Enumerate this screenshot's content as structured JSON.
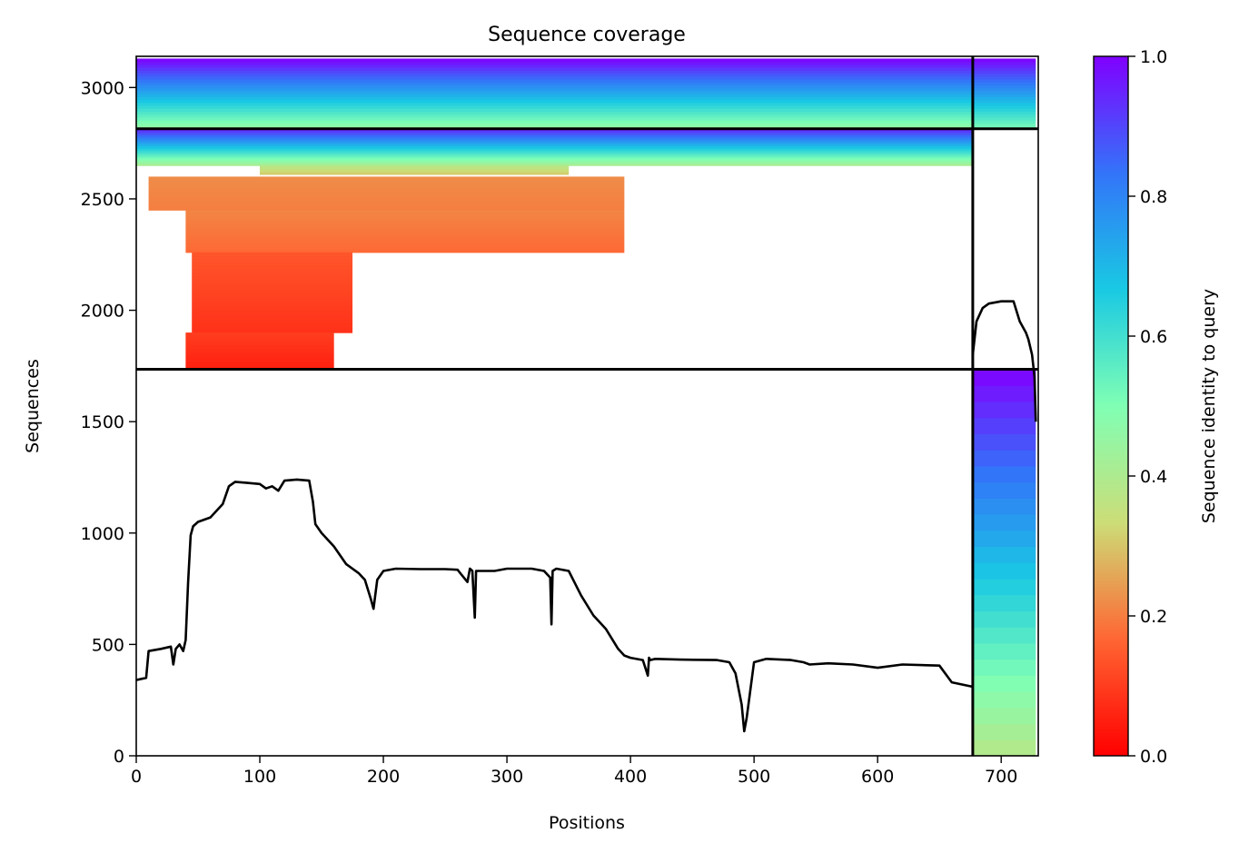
{
  "chart_data": {
    "type": "heatmap",
    "title": "Sequence coverage",
    "xlabel": "Positions",
    "ylabel": "Sequences",
    "xlim": [
      0,
      730
    ],
    "ylim": [
      0,
      3140
    ],
    "xticks": [
      0,
      100,
      200,
      300,
      400,
      500,
      600,
      700
    ],
    "yticks": [
      0,
      500,
      1000,
      1500,
      2000,
      2500,
      3000
    ],
    "colormap": "rainbow",
    "colorbar": {
      "label": "Sequence identity to query",
      "range": [
        0.0,
        1.0
      ],
      "ticks": [
        "0.0",
        "0.2",
        "0.4",
        "0.6",
        "0.8",
        "1.0"
      ]
    },
    "chain_boundary_x": 677,
    "row_boundaries_y": [
      1735,
      2815
    ],
    "bands": [
      {
        "x0": 0,
        "x1": 677,
        "y0": 2815,
        "y1": 3130,
        "identity_from": 0.45,
        "identity_to": 1.0
      },
      {
        "x0": 677,
        "x1": 728,
        "y0": 2815,
        "y1": 3130,
        "identity_from": 0.5,
        "identity_to": 1.0
      },
      {
        "x0": 0,
        "x1": 677,
        "y0": 2650,
        "y1": 2815,
        "identity_from": 0.4,
        "identity_to": 0.95
      },
      {
        "x0": 100,
        "x1": 350,
        "y0": 2610,
        "y1": 2650,
        "identity_from": 0.3,
        "identity_to": 0.38
      },
      {
        "x0": 10,
        "x1": 395,
        "y0": 2450,
        "y1": 2600,
        "identity_from": 0.2,
        "identity_to": 0.22
      },
      {
        "x0": 40,
        "x1": 395,
        "y0": 2260,
        "y1": 2450,
        "identity_from": 0.17,
        "identity_to": 0.21
      },
      {
        "x0": 45,
        "x1": 175,
        "y0": 1900,
        "y1": 2260,
        "identity_from": 0.08,
        "identity_to": 0.14
      },
      {
        "x0": 40,
        "x1": 160,
        "y0": 1735,
        "y1": 1900,
        "identity_from": 0.05,
        "identity_to": 0.1
      },
      {
        "x0": 677,
        "x1": 728,
        "y0": 0,
        "y1": 1735,
        "identity_from": 0.38,
        "identity_to": 1.0
      }
    ],
    "coverage_line_chain1": {
      "x": [
        0,
        8,
        10,
        20,
        28,
        30,
        32,
        35,
        38,
        40,
        42,
        44,
        46,
        50,
        60,
        70,
        75,
        80,
        90,
        100,
        105,
        110,
        115,
        120,
        130,
        140,
        143,
        145,
        150,
        155,
        160,
        170,
        180,
        185,
        190,
        192,
        195,
        200,
        210,
        230,
        250,
        260,
        268,
        270,
        272,
        274,
        275,
        278,
        290,
        300,
        320,
        330,
        335,
        336,
        337,
        340,
        350,
        360,
        370,
        380,
        390,
        395,
        400,
        410,
        414,
        415,
        416,
        420,
        440,
        470,
        480,
        485,
        490,
        492,
        494,
        500,
        510,
        530,
        540,
        545,
        560,
        580,
        600,
        620,
        650,
        660,
        677
      ],
      "y": [
        340,
        350,
        470,
        480,
        490,
        410,
        480,
        500,
        470,
        520,
        780,
        990,
        1030,
        1050,
        1070,
        1130,
        1210,
        1230,
        1225,
        1220,
        1200,
        1210,
        1190,
        1235,
        1240,
        1235,
        1140,
        1040,
        1000,
        970,
        940,
        860,
        820,
        790,
        700,
        660,
        790,
        830,
        840,
        838,
        838,
        835,
        780,
        840,
        830,
        620,
        830,
        830,
        830,
        840,
        840,
        830,
        800,
        590,
        830,
        840,
        830,
        720,
        630,
        570,
        480,
        450,
        440,
        430,
        360,
        440,
        430,
        435,
        432,
        430,
        420,
        370,
        230,
        110,
        170,
        420,
        435,
        430,
        420,
        410,
        415,
        410,
        395,
        410,
        405,
        330,
        310
      ]
    },
    "coverage_line_chain2": {
      "x": [
        677,
        680,
        685,
        690,
        700,
        710,
        715,
        720,
        722,
        725,
        727,
        728
      ],
      "y": [
        1800,
        1950,
        2010,
        2030,
        2040,
        2040,
        1950,
        1900,
        1870,
        1800,
        1700,
        1500
      ]
    }
  }
}
